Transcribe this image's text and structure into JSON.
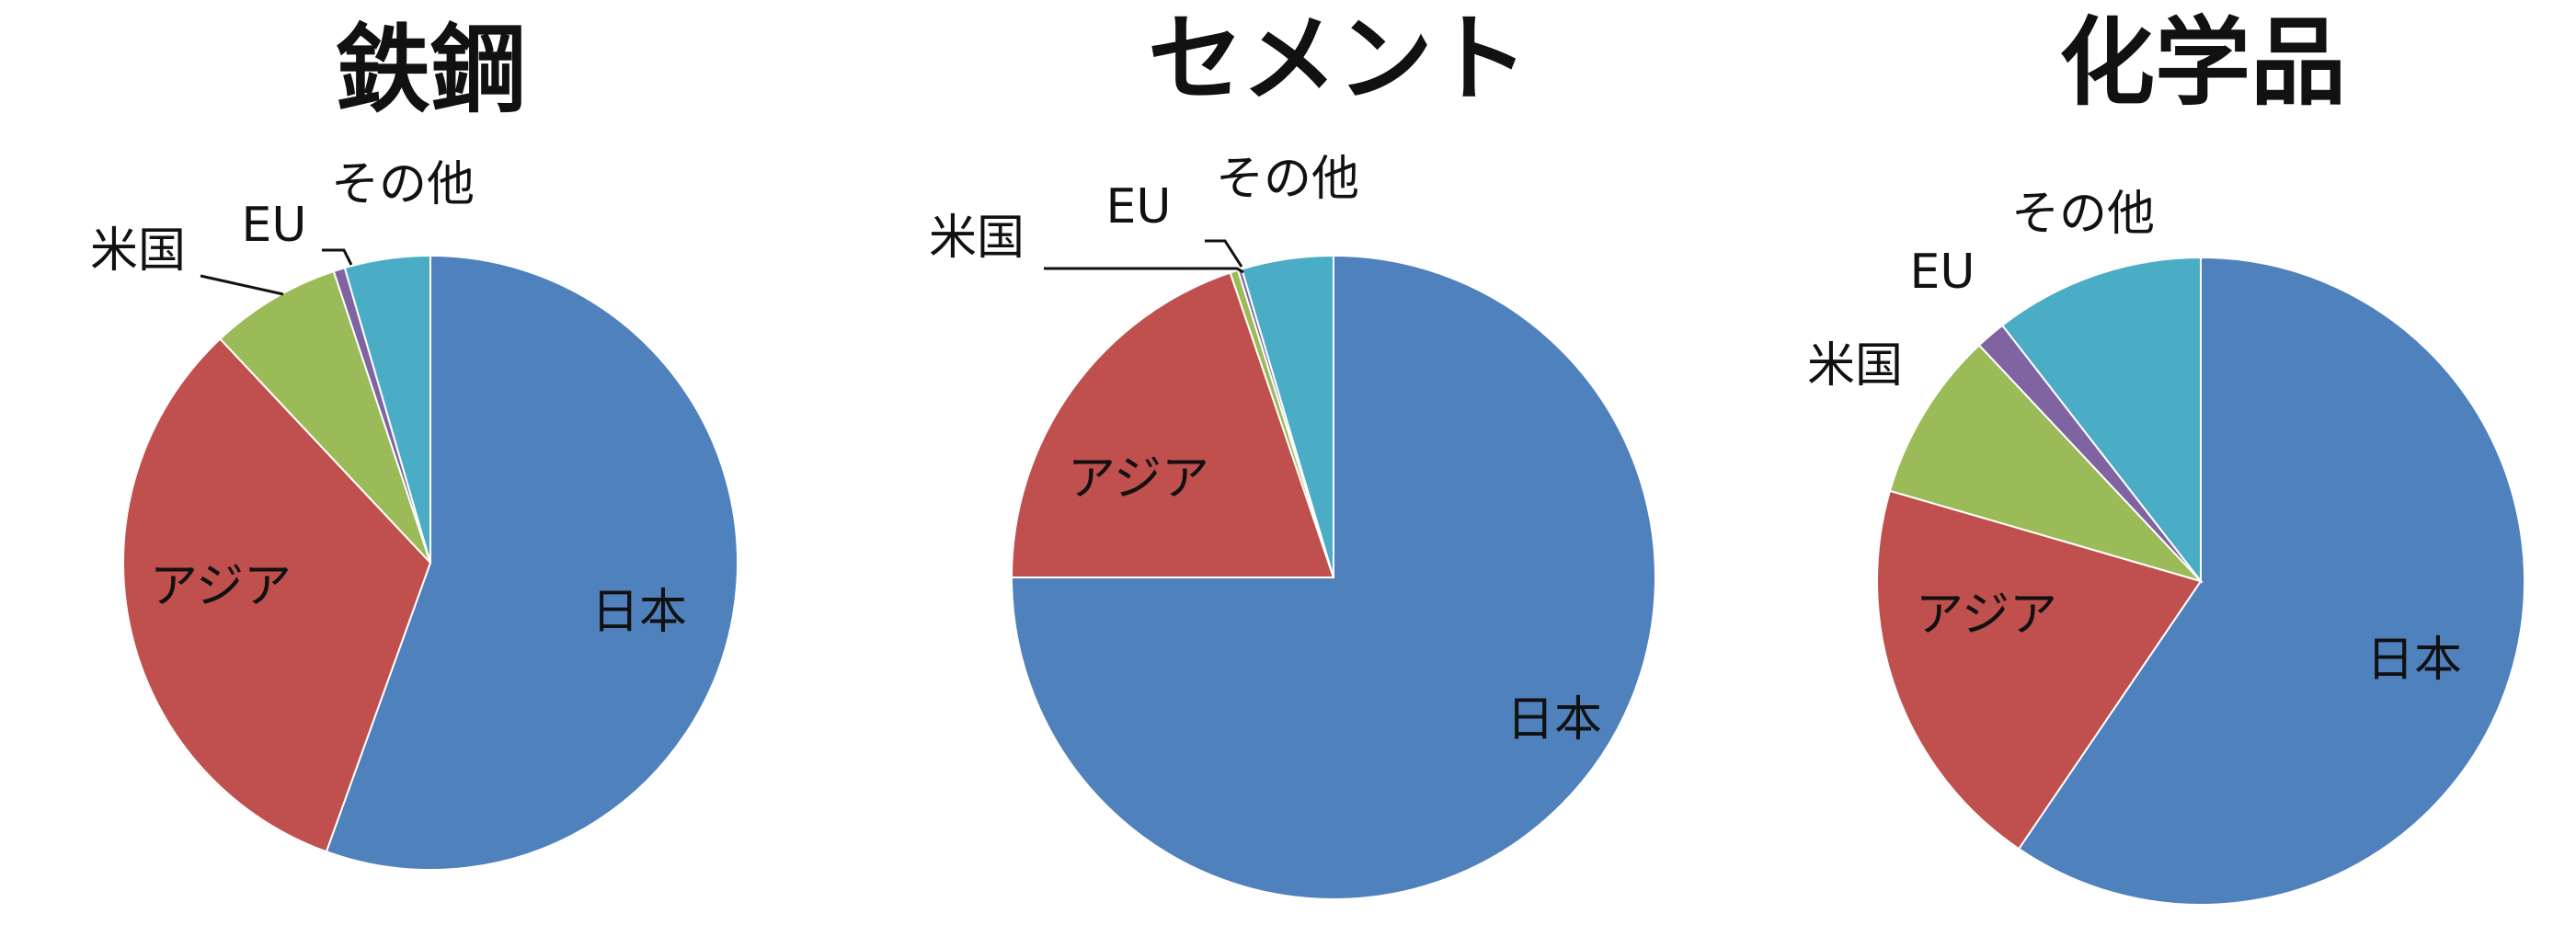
{
  "colors": {
    "日本": "#4F81BD",
    "アジア": "#C0504D",
    "米国": "#9BBB59",
    "EU": "#8064A2",
    "その他": "#4BACC6"
  },
  "chart_data": [
    {
      "type": "pie",
      "title": "鉄鋼",
      "slices": [
        {
          "label": "日本",
          "value": 55.5
        },
        {
          "label": "アジア",
          "value": 32.5
        },
        {
          "label": "米国",
          "value": 6.9
        },
        {
          "label": "EU",
          "value": 0.6
        },
        {
          "label": "その他",
          "value": 4.5
        }
      ]
    },
    {
      "type": "pie",
      "title": "セメント",
      "slices": [
        {
          "label": "日本",
          "value": 75.0
        },
        {
          "label": "アジア",
          "value": 19.8
        },
        {
          "label": "米国",
          "value": 0.4
        },
        {
          "label": "EU",
          "value": 0.2
        },
        {
          "label": "その他",
          "value": 4.6
        }
      ]
    },
    {
      "type": "pie",
      "title": "化学品",
      "slices": [
        {
          "label": "日本",
          "value": 59.5
        },
        {
          "label": "アジア",
          "value": 20.0
        },
        {
          "label": "米国",
          "value": 8.5
        },
        {
          "label": "EU",
          "value": 1.5
        },
        {
          "label": "その他",
          "value": 10.5
        }
      ]
    }
  ]
}
